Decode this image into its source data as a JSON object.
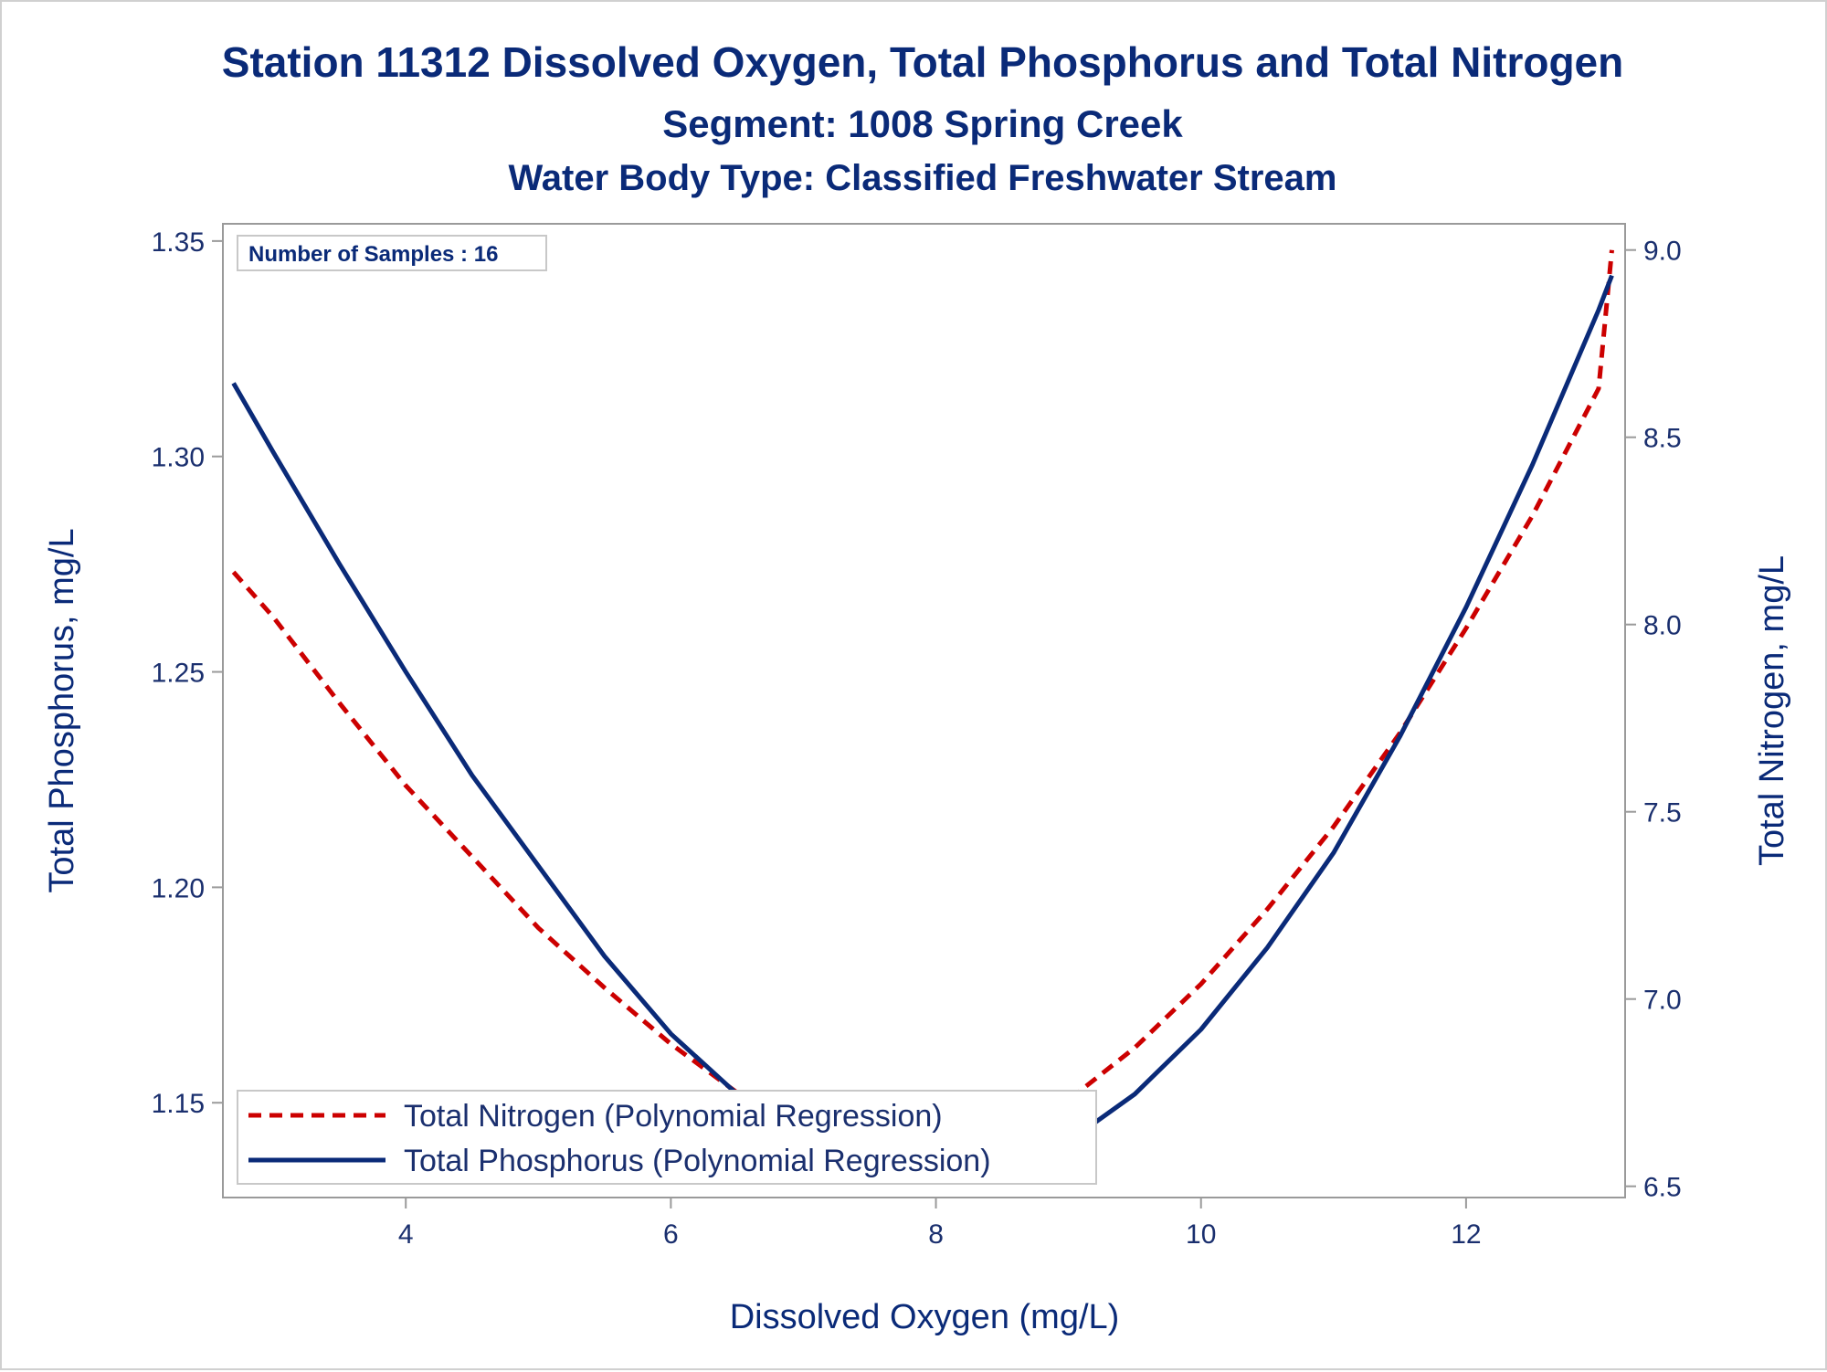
{
  "chart_data": {
    "type": "line",
    "title": "Station 11312  Dissolved Oxygen, Total Phosphorus and Total Nitrogen",
    "subtitle": "Segment: 1008  Spring Creek",
    "subtitle2": "Water Body Type: Classified Freshwater Stream",
    "xlabel": "Dissolved Oxygen (mg/L)",
    "ylabel": "Total Phosphorus, mg/L",
    "y2label": "Total Nitrogen, mg/L",
    "xlim": [
      2.62,
      13.2
    ],
    "ylim": [
      1.128,
      1.354
    ],
    "y2lim": [
      6.47,
      9.07
    ],
    "x_ticks": [
      4,
      6,
      8,
      10,
      12
    ],
    "x_tick_labels": [
      "4",
      "6",
      "8",
      "10",
      "12"
    ],
    "y_ticks": [
      1.15,
      1.2,
      1.25,
      1.3,
      1.35
    ],
    "y_tick_labels": [
      "1.15",
      "1.20",
      "1.25",
      "1.30",
      "1.35"
    ],
    "y2_ticks": [
      6.5,
      7.0,
      7.5,
      8.0,
      8.5,
      9.0
    ],
    "y2_tick_labels": [
      "6.5",
      "7.0",
      "7.5",
      "8.0",
      "8.5",
      "9.0"
    ],
    "inset_label": "Number of Samples : 16",
    "grid": false,
    "legend_position": "bottom-left",
    "series": [
      {
        "name": "Total Nitrogen (Polynomial Regression)",
        "axis": "right",
        "style": "dashed",
        "color": "#cc0000",
        "x": [
          2.7,
          3.0,
          3.5,
          4.0,
          4.5,
          5.0,
          5.5,
          6.0,
          6.5,
          7.0,
          7.5,
          8.0,
          8.5,
          9.0,
          9.5,
          10.0,
          10.5,
          11.0,
          11.5,
          12.0,
          12.5,
          13.0,
          13.1
        ],
        "values": [
          8.14,
          8.02,
          7.79,
          7.57,
          7.38,
          7.19,
          7.03,
          6.88,
          6.75,
          6.64,
          6.57,
          6.56,
          6.62,
          6.73,
          6.87,
          7.04,
          7.24,
          7.46,
          7.71,
          7.99,
          8.29,
          8.63,
          9.0
        ]
      },
      {
        "name": "Total Phosphorus (Polynomial Regression)",
        "axis": "left",
        "style": "solid",
        "color": "#0a2a78",
        "x": [
          2.7,
          3.0,
          3.5,
          4.0,
          4.5,
          5.0,
          5.5,
          6.0,
          6.5,
          7.0,
          7.5,
          8.0,
          8.5,
          9.0,
          9.5,
          10.0,
          10.5,
          11.0,
          11.5,
          12.0,
          12.5,
          13.0,
          13.1
        ],
        "values": [
          1.317,
          1.301,
          1.275,
          1.25,
          1.226,
          1.205,
          1.184,
          1.166,
          1.152,
          1.141,
          1.134,
          1.132,
          1.134,
          1.141,
          1.152,
          1.167,
          1.186,
          1.208,
          1.235,
          1.265,
          1.298,
          1.334,
          1.342
        ]
      }
    ]
  }
}
